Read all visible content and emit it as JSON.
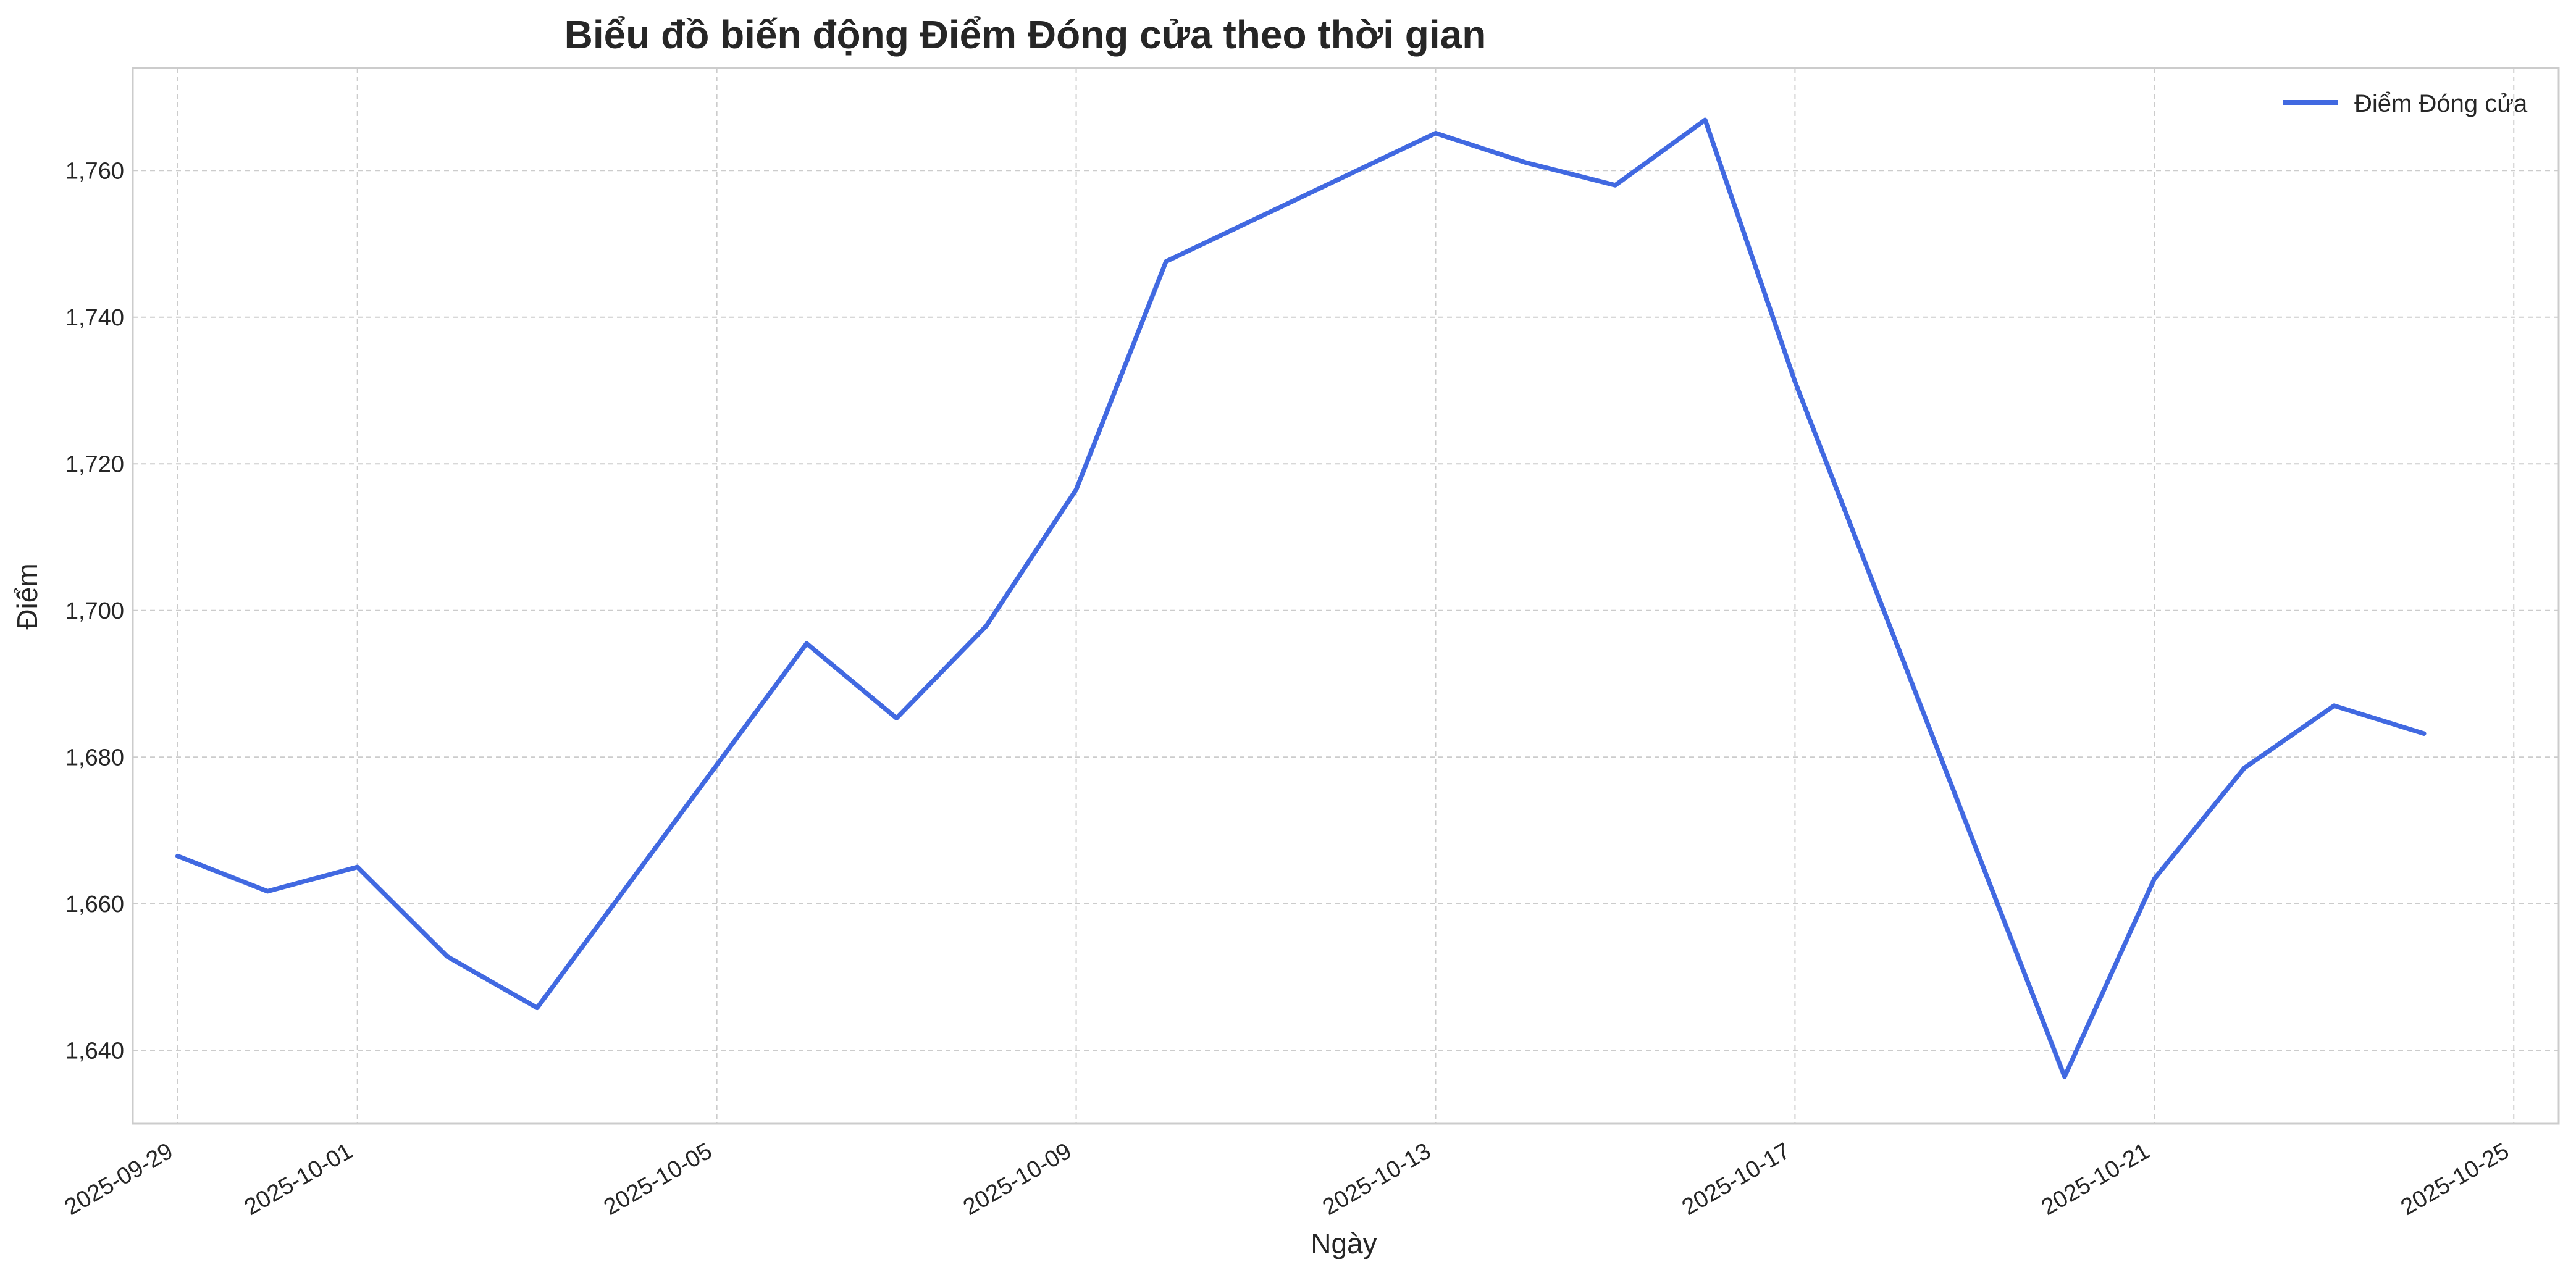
{
  "colors": {
    "line": "#4169E1",
    "grid": "#cccccc",
    "spine": "#cccccc",
    "text": "#262626",
    "background": "#ffffff"
  },
  "chart_data": {
    "type": "line",
    "title": "Biểu đồ biến động Điểm Đóng cửa theo thời gian",
    "xlabel": "Ngày",
    "ylabel": "Điểm",
    "x_axis_type": "date",
    "xlim": [
      "2025-09-28T12:00",
      "2025-10-25T12:00"
    ],
    "ylim": [
      1630,
      1774
    ],
    "x_ticks": [
      "2025-09-29",
      "2025-10-01",
      "2025-10-05",
      "2025-10-09",
      "2025-10-13",
      "2025-10-17",
      "2025-10-21",
      "2025-10-25"
    ],
    "y_ticks": [
      1640,
      1660,
      1680,
      1700,
      1720,
      1740,
      1760
    ],
    "y_tick_labels": [
      "1,640",
      "1,660",
      "1,680",
      "1,700",
      "1,720",
      "1,740",
      "1,760"
    ],
    "grid": true,
    "legend_position": "top-right",
    "series": [
      {
        "name": "Điểm Đóng cửa",
        "color": "#4169E1",
        "x": [
          "2025-09-29",
          "2025-09-30",
          "2025-10-01",
          "2025-10-02",
          "2025-10-03",
          "2025-10-06",
          "2025-10-07",
          "2025-10-08",
          "2025-10-09",
          "2025-10-10",
          "2025-10-13",
          "2025-10-14",
          "2025-10-15",
          "2025-10-16",
          "2025-10-17",
          "2025-10-20",
          "2025-10-21",
          "2025-10-22",
          "2025-10-23",
          "2025-10-24"
        ],
        "values": [
          1666.5,
          1661.7,
          1665.0,
          1652.8,
          1645.8,
          1695.5,
          1685.3,
          1697.9,
          1716.5,
          1747.6,
          1765.1,
          1761.1,
          1758.0,
          1766.9,
          1731.2,
          1636.4,
          1663.4,
          1678.5,
          1687.0,
          1683.2
        ]
      }
    ]
  }
}
